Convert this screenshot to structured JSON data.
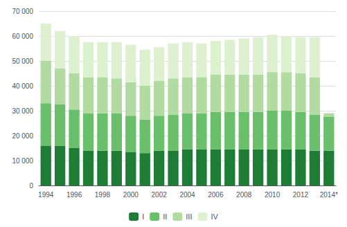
{
  "chart_data": {
    "type": "bar",
    "categories": [
      "1994",
      null,
      "1996",
      null,
      "1998",
      null,
      "2000",
      null,
      "2002",
      null,
      "2004",
      null,
      "2006",
      null,
      "2008",
      null,
      "2010",
      null,
      "2012",
      null,
      "2014*"
    ],
    "series": [
      {
        "name": "I",
        "color": "#1e7d34",
        "values": [
          16000,
          16000,
          15000,
          14000,
          14000,
          14000,
          13500,
          13000,
          14000,
          14000,
          14500,
          14500,
          14500,
          14500,
          14500,
          14500,
          14500,
          14500,
          14500,
          14000,
          14000
        ]
      },
      {
        "name": "II",
        "color": "#6abf6a",
        "values": [
          17000,
          16500,
          15500,
          15000,
          15000,
          15000,
          14500,
          13500,
          14000,
          14500,
          14500,
          14500,
          15000,
          15000,
          15000,
          15000,
          15500,
          15500,
          15000,
          14500,
          13500
        ]
      },
      {
        "name": "III",
        "color": "#b2dba2",
        "values": [
          17000,
          14500,
          14500,
          14500,
          14500,
          14000,
          13500,
          13500,
          14000,
          14500,
          14500,
          14500,
          15000,
          15000,
          15000,
          15000,
          15500,
          15500,
          15500,
          15000,
          1500
        ]
      },
      {
        "name": "IV",
        "color": "#ddf0d0",
        "values": [
          15000,
          15000,
          15000,
          14000,
          14000,
          14500,
          15000,
          14500,
          13500,
          14000,
          14000,
          13500,
          13500,
          14000,
          14500,
          15000,
          15000,
          14500,
          14500,
          16000,
          0
        ]
      }
    ],
    "stacked": true,
    "ylim": [
      0,
      70000
    ],
    "yticks": [
      0,
      {
        "value": 10000,
        "label": "10 000"
      },
      {
        "value": 20000,
        "label": "20 000"
      },
      {
        "value": 30000,
        "label": "30 000"
      },
      {
        "value": 40000,
        "label": "40 000"
      },
      {
        "value": 50000,
        "label": "50 000"
      },
      {
        "value": 60000,
        "label": "60 000"
      },
      {
        "value": 70000,
        "label": "70 000"
      }
    ],
    "grid": true,
    "legend": "bottom"
  }
}
